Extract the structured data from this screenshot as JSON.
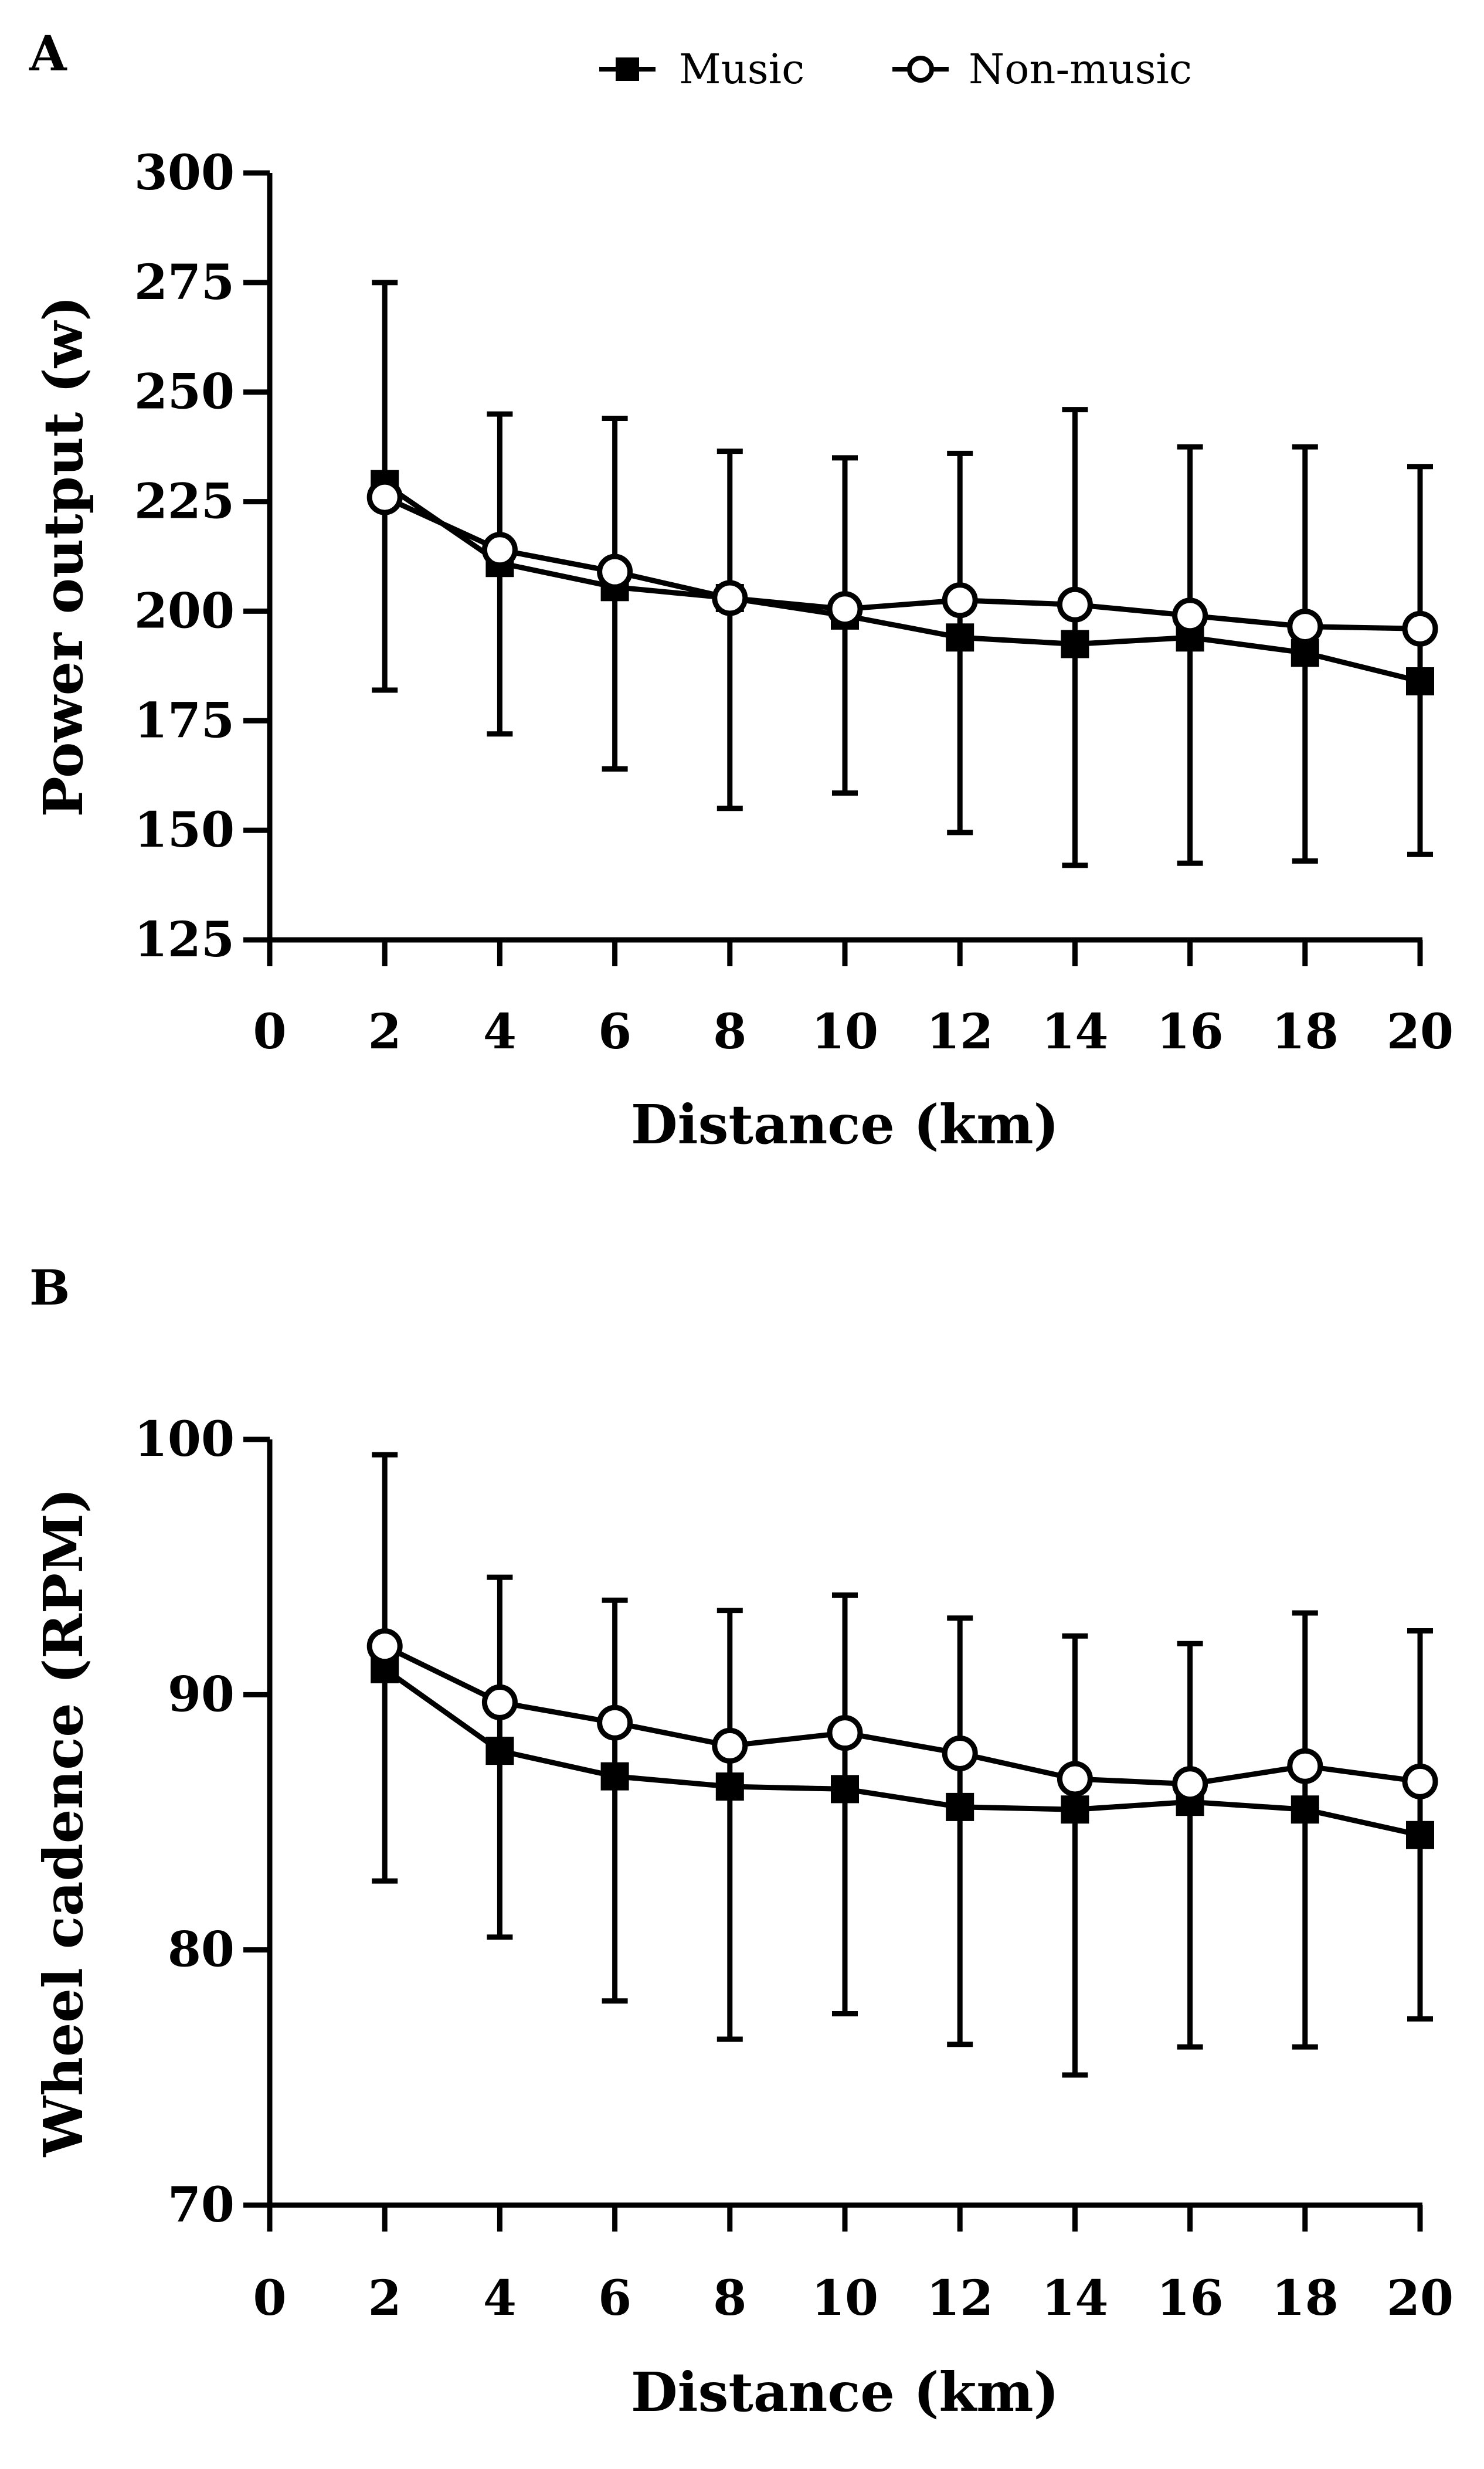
{
  "chart_data": [
    {
      "panel": "A",
      "type": "line",
      "xlabel": "Distance (km)",
      "ylabel": "Power output (w)",
      "xlim": [
        0,
        20
      ],
      "ylim": [
        125,
        300
      ],
      "xticks": [
        0,
        2,
        4,
        6,
        8,
        10,
        12,
        14,
        16,
        18,
        20
      ],
      "yticks": [
        125,
        150,
        175,
        200,
        225,
        250,
        275,
        300
      ],
      "x": [
        2,
        4,
        6,
        8,
        10,
        12,
        14,
        16,
        18,
        20
      ],
      "series": [
        {
          "name": "Music",
          "marker": "filled-square",
          "values": [
            229,
            211,
            205.5,
            203,
            199,
            194,
            192.5,
            194,
            190.5,
            184
          ],
          "error_low": [
            182,
            172,
            164,
            155,
            158.5,
            149.5,
            142,
            142.5,
            143,
            144.5
          ],
          "error_high": [
            275,
            245,
            244,
            236.5,
            235,
            236,
            246,
            237.5,
            237.5,
            233
          ]
        },
        {
          "name": "Non-music",
          "marker": "open-circle",
          "values": [
            226,
            214,
            209,
            203,
            200.5,
            202.5,
            201.5,
            199,
            196.5,
            196
          ],
          "error_low": [],
          "error_high": []
        }
      ]
    },
    {
      "panel": "B",
      "type": "line",
      "xlabel": "Distance (km)",
      "ylabel": "Wheel cadence (RPM)",
      "xlim": [
        0,
        20
      ],
      "ylim": [
        70,
        100
      ],
      "xticks": [
        0,
        2,
        4,
        6,
        8,
        10,
        12,
        14,
        16,
        18,
        20
      ],
      "yticks": [
        70,
        80,
        90,
        100
      ],
      "x": [
        2,
        4,
        6,
        8,
        10,
        12,
        14,
        16,
        18,
        20
      ],
      "series": [
        {
          "name": "Music",
          "marker": "filled-square",
          "values": [
            91,
            87.8,
            86.8,
            86.4,
            86.3,
            85.6,
            85.5,
            85.8,
            85.5,
            84.5
          ],
          "error_low": [
            82.7,
            80.5,
            78,
            76.5,
            77.5,
            76.3,
            75.1,
            76.2,
            76.2,
            77.3
          ],
          "error_high": [
            99.4,
            94.6,
            93.7,
            93.3,
            93.9,
            93,
            92.3,
            92,
            93.2,
            92.5
          ]
        },
        {
          "name": "Non-music",
          "marker": "open-circle",
          "values": [
            91.9,
            89.7,
            88.9,
            88,
            88.5,
            87.7,
            86.7,
            86.5,
            87.2,
            86.6
          ],
          "error_low": [],
          "error_high": []
        }
      ]
    }
  ],
  "legend": {
    "items": [
      {
        "label": "Music",
        "marker": "filled-square"
      },
      {
        "label": "Non-music",
        "marker": "open-circle"
      }
    ],
    "placement": "top-center"
  },
  "colors": {
    "line": "#000000",
    "marker_fill_open": "#ffffff",
    "background": "#ffffff"
  }
}
